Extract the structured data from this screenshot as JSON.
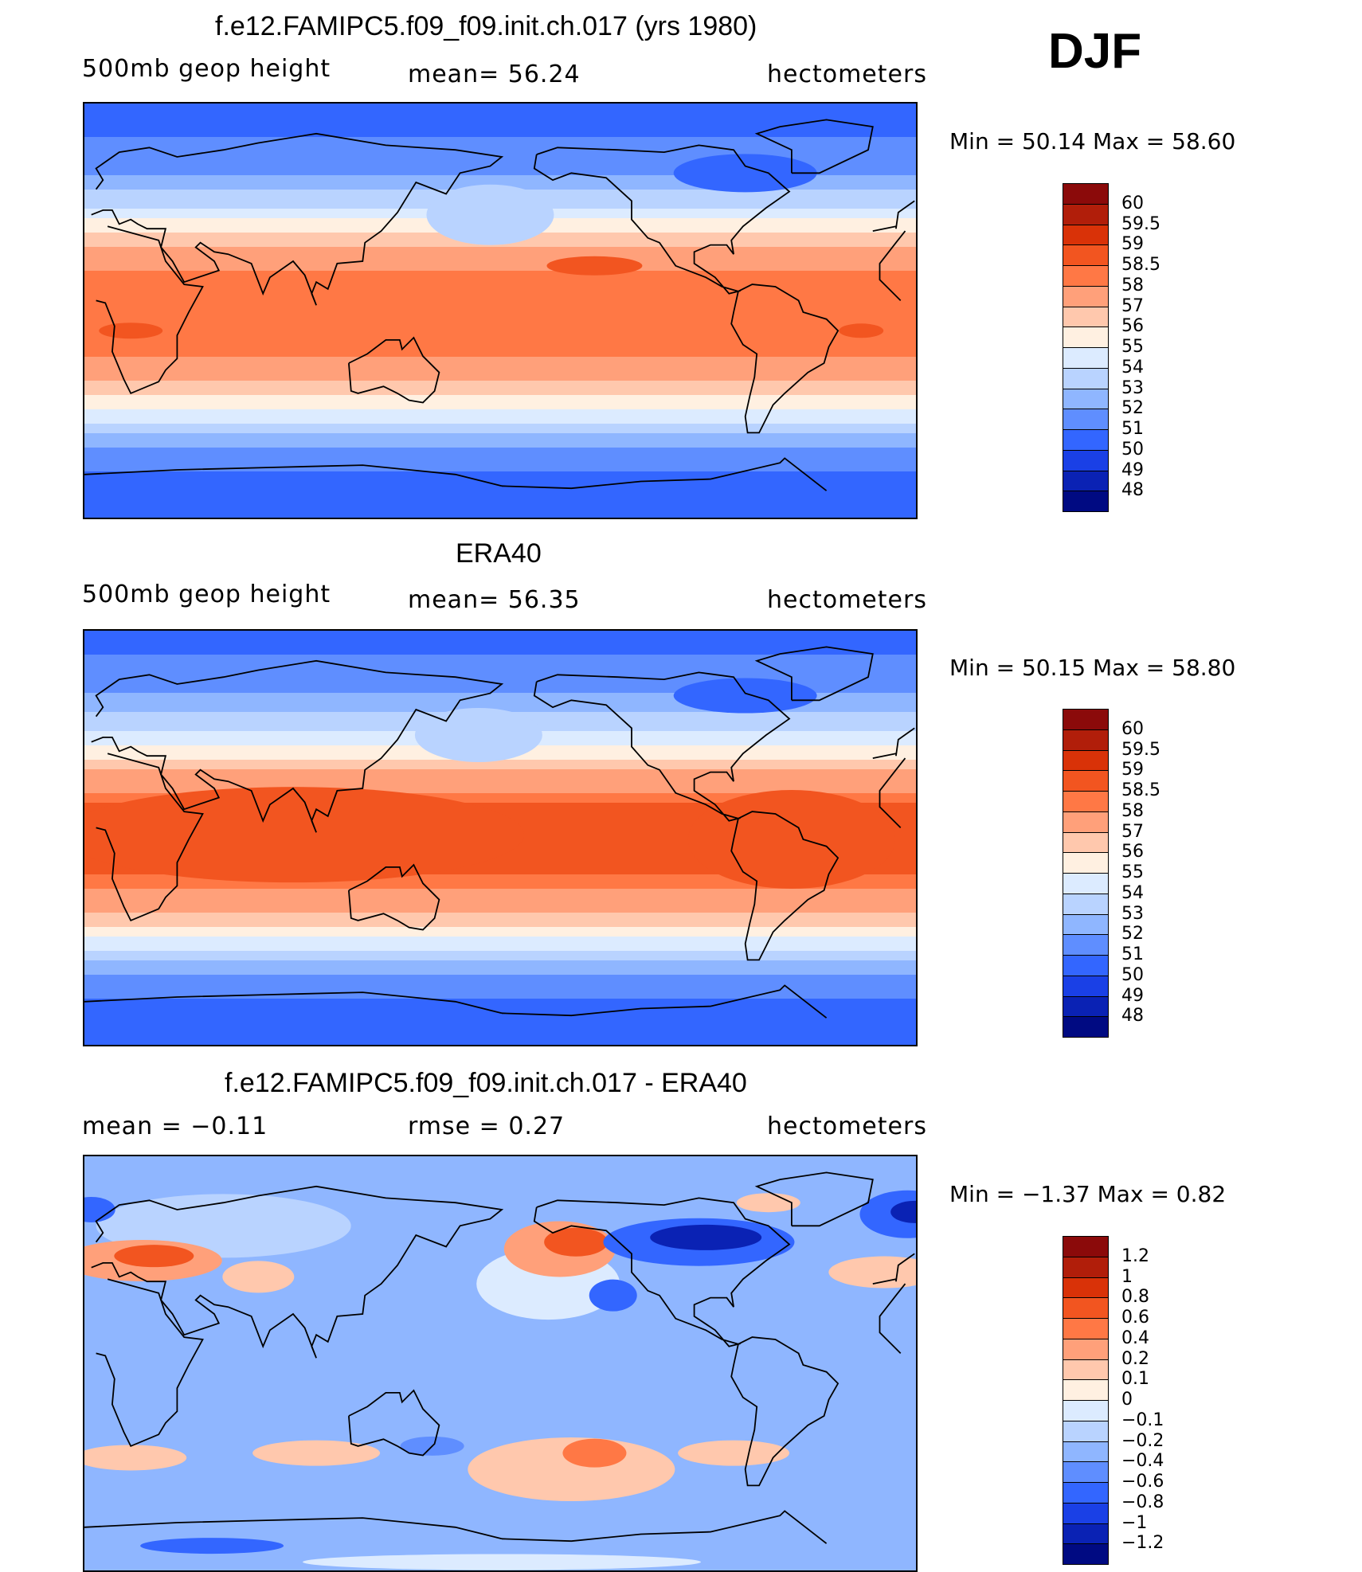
{
  "season": "DJF",
  "land_color": "#000000",
  "panels": [
    {
      "id": "model",
      "title": "f.e12.FAMIPC5.f09_f09.init.ch.017 (yrs 1980)",
      "left_label": "500mb  geop  height",
      "center_label": "mean=   56.24",
      "right_label": "hectometers",
      "minmax": "Min  =     50.14  Max  =     58.60"
    },
    {
      "id": "obs",
      "title": "ERA40",
      "left_label": "500mb  geop  height",
      "center_label": "mean=   56.35",
      "right_label": "hectometers",
      "minmax": "Min  =     50.15  Max  =     58.80"
    },
    {
      "id": "diff",
      "title": "f.e12.FAMIPC5.f09_f09.init.ch.017 - ERA40",
      "left_label": "mean  =    −0.11",
      "center_label": "rmse  =     0.27",
      "right_label": "hectometers",
      "minmax": "Min  =    −1.37  Max  =      0.82"
    }
  ],
  "colorbars": {
    "abs": {
      "labels": [
        "60",
        "59.5",
        "59",
        "58.5",
        "58",
        "57",
        "56",
        "55",
        "54",
        "53",
        "52",
        "51",
        "50",
        "49",
        "48"
      ],
      "colors": [
        "#8b0a0a",
        "#b11e0a",
        "#d93208",
        "#f25520",
        "#ff7845",
        "#ffa07a",
        "#ffc8ad",
        "#fff0e1",
        "#dcebff",
        "#b9d3ff",
        "#8fb6ff",
        "#5f8eff",
        "#3366ff",
        "#1a40e6",
        "#0a22b4",
        "#000a82"
      ]
    },
    "diff": {
      "labels": [
        "1.2",
        "1",
        "0.8",
        "0.6",
        "0.4",
        "0.2",
        "0.1",
        "0",
        "−0.1",
        "−0.2",
        "−0.4",
        "−0.6",
        "−0.8",
        "−1",
        "−1.2"
      ],
      "colors": [
        "#8b0a0a",
        "#b11e0a",
        "#d93208",
        "#f25520",
        "#ff7845",
        "#ffa07a",
        "#ffc8ad",
        "#fff0e1",
        "#dcebff",
        "#b9d3ff",
        "#8fb6ff",
        "#5f8eff",
        "#3366ff",
        "#1a40e6",
        "#0a22b4",
        "#000a82"
      ]
    }
  },
  "chart_data": [
    {
      "type": "heatmap",
      "title": "f.e12.FAMIPC5.f09_f09.init.ch.017 (yrs 1980)",
      "variable": "500mb geop height",
      "units": "hectometers",
      "season": "DJF",
      "mean": 56.24,
      "min": 50.14,
      "max": 58.6,
      "contour_levels": [
        48,
        49,
        50,
        51,
        52,
        53,
        54,
        55,
        56,
        57,
        58,
        58.5,
        59,
        59.5,
        60
      ],
      "zonal_profile": {
        "lat": [
          90,
          75,
          60,
          45,
          30,
          15,
          0,
          -15,
          -30,
          -45,
          -60,
          -75,
          -90
        ],
        "value": [
          50.4,
          51.0,
          52.0,
          54.0,
          56.8,
          58.3,
          58.5,
          58.4,
          57.0,
          54.5,
          51.5,
          50.6,
          50.3
        ]
      }
    },
    {
      "type": "heatmap",
      "title": "ERA40",
      "variable": "500mb geop height",
      "units": "hectometers",
      "season": "DJF",
      "mean": 56.35,
      "min": 50.15,
      "max": 58.8,
      "contour_levels": [
        48,
        49,
        50,
        51,
        52,
        53,
        54,
        55,
        56,
        57,
        58,
        58.5,
        59,
        59.5,
        60
      ],
      "zonal_profile": {
        "lat": [
          90,
          75,
          60,
          45,
          30,
          15,
          0,
          -15,
          -30,
          -45,
          -60,
          -75,
          -90
        ],
        "value": [
          50.5,
          51.2,
          52.2,
          54.2,
          57.0,
          58.6,
          58.8,
          58.6,
          57.2,
          54.6,
          51.6,
          50.6,
          50.3
        ]
      }
    },
    {
      "type": "heatmap",
      "title": "f.e12.FAMIPC5.f09_f09.init.ch.017 - ERA40",
      "units": "hectometers",
      "season": "DJF",
      "mean": -0.11,
      "rmse": 0.27,
      "min": -1.37,
      "max": 0.82,
      "contour_levels": [
        -1.2,
        -1,
        -0.8,
        -0.6,
        -0.4,
        -0.2,
        -0.1,
        0,
        0.1,
        0.2,
        0.4,
        0.6,
        0.8,
        1,
        1.2
      ]
    }
  ]
}
